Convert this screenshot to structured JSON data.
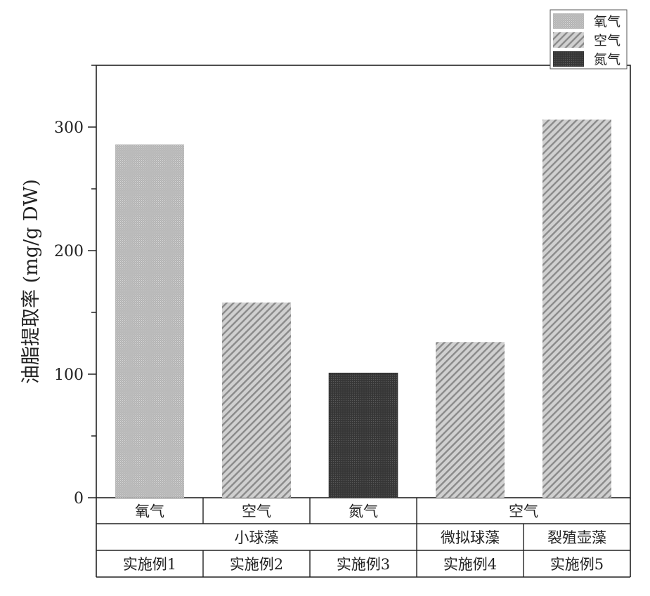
{
  "chart_data": {
    "type": "bar",
    "ylabel": "油脂提取率 (mg/g DW)",
    "ylim": [
      0,
      350
    ],
    "yticks": [
      0,
      100,
      200,
      300
    ],
    "grid": false,
    "legend_position": "top-right",
    "legend": [
      {
        "name": "氧气",
        "pattern": "light-gray-fine-stipple"
      },
      {
        "name": "空气",
        "pattern": "diagonal-hatch"
      },
      {
        "name": "氮气",
        "pattern": "dark-gray-stipple"
      }
    ],
    "bars": [
      {
        "gas": "氧气",
        "value": 286
      },
      {
        "gas": "空气",
        "value": 158
      },
      {
        "gas": "氮气",
        "value": 101
      },
      {
        "gas": "空气",
        "value": 126
      },
      {
        "gas": "空气",
        "value": 306
      }
    ],
    "category_rows": {
      "gas": [
        {
          "label": "氧气",
          "span": 1
        },
        {
          "label": "空气",
          "span": 1
        },
        {
          "label": "氮气",
          "span": 1
        },
        {
          "label": "空气",
          "span": 2
        }
      ],
      "algae": [
        {
          "label": "小球藻",
          "span": 3
        },
        {
          "label": "微拟球藻",
          "span": 1
        },
        {
          "label": "裂殖壶藻",
          "span": 1
        }
      ],
      "example": [
        {
          "label": "实施例1",
          "span": 1
        },
        {
          "label": "实施例2",
          "span": 1
        },
        {
          "label": "实施例3",
          "span": 1
        },
        {
          "label": "实施例4",
          "span": 1
        },
        {
          "label": "实施例5",
          "span": 1
        }
      ]
    },
    "colors": {
      "oxygen": "#b4b4b4",
      "air_base": "#d0d0d0",
      "air_hatch": "#8a8a8a",
      "nitrogen": "#3a3a3a",
      "axis": "#222222"
    }
  }
}
